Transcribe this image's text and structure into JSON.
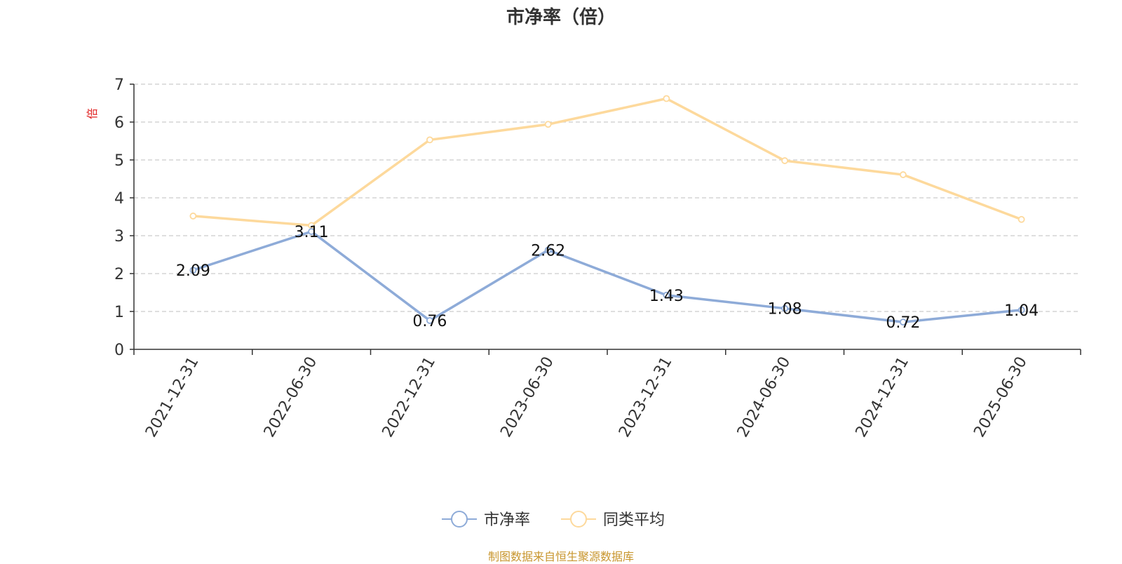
{
  "chart_data": {
    "type": "line",
    "title": "市净率（倍）",
    "ylabel": "倍",
    "xlabel": "",
    "categories": [
      "2021-12-31",
      "2022-06-30",
      "2022-12-31",
      "2023-06-30",
      "2023-12-31",
      "2024-06-30",
      "2024-12-31",
      "2025-06-30"
    ],
    "ylim": [
      0,
      7
    ],
    "yticks": [
      0,
      1,
      2,
      3,
      4,
      5,
      6,
      7
    ],
    "grid": true,
    "legend_position": "bottom",
    "series": [
      {
        "name": "市净率",
        "color": "#8eabd8",
        "values": [
          2.09,
          3.11,
          0.76,
          2.62,
          1.43,
          1.08,
          0.72,
          1.04
        ],
        "data_labels": [
          "2.09",
          "3.11",
          "0.76",
          "2.62",
          "1.43",
          "1.08",
          "0.72",
          "1.04"
        ]
      },
      {
        "name": "同类平均",
        "color": "#fdd99c",
        "values": [
          3.52,
          3.27,
          5.53,
          5.94,
          6.62,
          4.98,
          4.61,
          3.43
        ]
      }
    ]
  },
  "source_note": "制图数据来自恒生聚源数据库",
  "colors": {
    "title": "#333333",
    "axis": "#333333",
    "grid": "#cccccc",
    "ylabel": "#e02020",
    "source": "#c8962e"
  }
}
